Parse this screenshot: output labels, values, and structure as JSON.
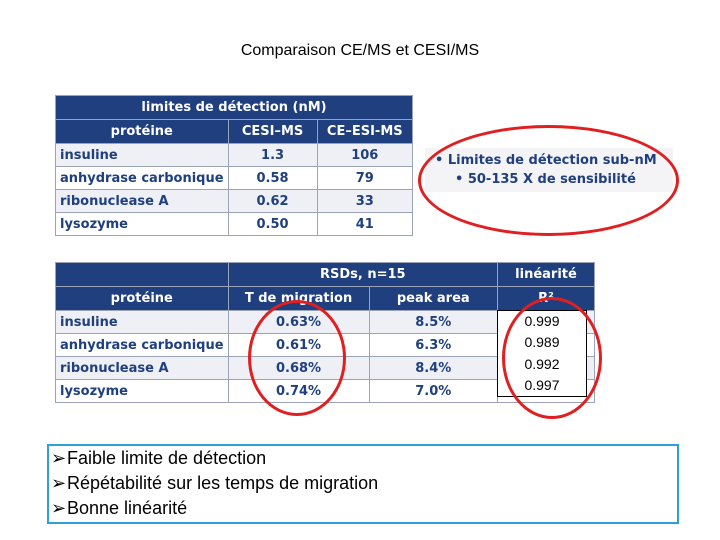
{
  "title": "Comparaison CE/MS et CESI/MS",
  "table1": {
    "caption": "limites de détection (nM)",
    "headers": [
      "protéine",
      "CESI–MS",
      "CE–ESI-MS"
    ],
    "rows": [
      {
        "name": "insuline",
        "cesi": "1.3",
        "ce": "106"
      },
      {
        "name": "anhydrase carbonique",
        "cesi": "0.58",
        "ce": "79"
      },
      {
        "name": "ribonuclease A",
        "cesi": "0.62",
        "ce": "33"
      },
      {
        "name": "lysozyme",
        "cesi": "0.50",
        "ce": "41"
      }
    ]
  },
  "callout": {
    "line1": "• Limites de détection sub-nM",
    "line2": "• 50-135 X de sensibilité"
  },
  "table2": {
    "rsd_caption": "RSDs, n=15",
    "lin_caption": "linéarité",
    "headers": [
      "protéine",
      "T de migration",
      "peak area",
      "R²"
    ],
    "rows": [
      {
        "name": "insuline",
        "tmig": "0.63%",
        "area": "8.5%"
      },
      {
        "name": "anhydrase carbonique",
        "tmig": "0.61%",
        "area": "6.3%"
      },
      {
        "name": "ribonuclease A",
        "tmig": "0.68%",
        "area": "8.4%"
      },
      {
        "name": "lysozyme",
        "tmig": "0.74%",
        "area": "7.0%"
      }
    ]
  },
  "r2_values": [
    "0.999",
    "0.989",
    "0.992",
    "0.997"
  ],
  "conclusions": [
    "Faible limite de détection",
    "Répétabilité sur les temps de migration",
    "Bonne linéarité"
  ],
  "colors": {
    "header": "#1f3f7f",
    "highlight": "#e02020",
    "box_border": "#2f9fd8"
  }
}
